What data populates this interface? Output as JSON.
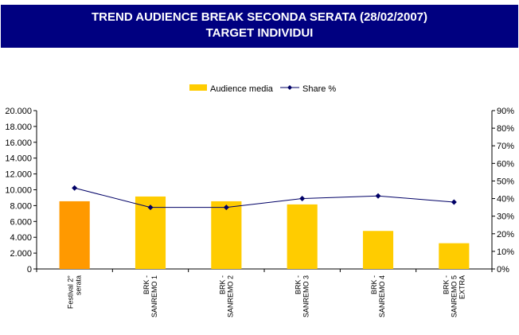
{
  "title": {
    "line1": "TREND AUDIENCE BREAK SECONDA SERATA (28/02/2007)",
    "line2": "TARGET INDIVIDUI"
  },
  "chart_data": {
    "type": "bar",
    "categories": [
      [
        "Festival 2°",
        "serata"
      ],
      [
        "BRK  -",
        "SANREMO 1"
      ],
      [
        "BRK  -",
        "SANREMO 2"
      ],
      [
        "BRK  -",
        "SANREMO 3"
      ],
      [
        "BRK  -",
        "SANREMO 4"
      ],
      [
        "BRK  -",
        "SANREMO 5",
        "EXTRA"
      ]
    ],
    "series": [
      {
        "name": "Audience media",
        "kind": "bar",
        "axis": "left",
        "values": [
          8550,
          9150,
          8550,
          8150,
          4800,
          3250
        ]
      },
      {
        "name": "Share %",
        "kind": "line",
        "axis": "right",
        "values": [
          46,
          35,
          35,
          40,
          41.5,
          38
        ]
      }
    ],
    "colors": {
      "bar": "#ffcc00",
      "bar_highlight": "#ff9900",
      "line": "#000066",
      "title_bg": "#000080"
    },
    "highlight_index": 0,
    "ylim_left": [
      0,
      20000
    ],
    "ylim_right": [
      0,
      90
    ],
    "yticks_left": [
      "0",
      "2.000",
      "4.000",
      "6.000",
      "8.000",
      "10.000",
      "12.000",
      "14.000",
      "16.000",
      "18.000",
      "20.000"
    ],
    "yticks_right": [
      "0%",
      "10%",
      "20%",
      "30%",
      "40%",
      "50%",
      "60%",
      "70%",
      "80%",
      "90%"
    ],
    "legend_position": "top-center",
    "grid": false
  }
}
